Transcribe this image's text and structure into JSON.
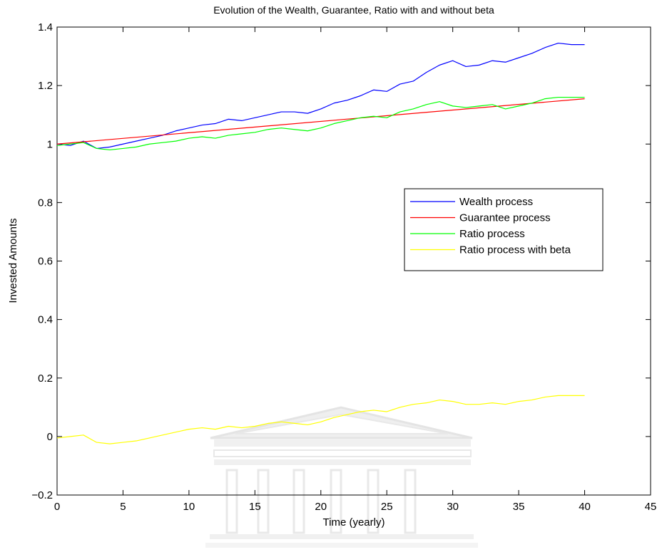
{
  "chart_data": {
    "type": "line",
    "title": "Evolution of the Wealth, Guarantee, Ratio with and without beta",
    "xlabel": "Time (yearly)",
    "ylabel": "Invested Amounts",
    "xlim": [
      0,
      45
    ],
    "ylim": [
      -0.2,
      1.4
    ],
    "xticks": [
      0,
      5,
      10,
      15,
      20,
      25,
      30,
      35,
      40,
      45
    ],
    "yticks": [
      -0.2,
      0,
      0.2,
      0.4,
      0.6,
      0.8,
      1,
      1.2,
      1.4
    ],
    "xtick_labels": [
      "0",
      "5",
      "10",
      "15",
      "20",
      "25",
      "30",
      "35",
      "40",
      "45"
    ],
    "ytick_labels": [
      "−0.2",
      "0",
      "0.2",
      "0.4",
      "0.6",
      "0.8",
      "1",
      "1.2",
      "1.4"
    ],
    "grid": false,
    "legend_position": "right",
    "watermark": "university building emblem",
    "series": [
      {
        "name": "Wealth process",
        "color": "#0000ff",
        "x": [
          0,
          1,
          2,
          3,
          4,
          5,
          6,
          7,
          8,
          9,
          10,
          11,
          12,
          13,
          14,
          15,
          16,
          17,
          18,
          19,
          20,
          21,
          22,
          23,
          24,
          25,
          26,
          27,
          28,
          29,
          30,
          31,
          32,
          33,
          34,
          35,
          36,
          37,
          38,
          39,
          40
        ],
        "values": [
          1.0,
          0.995,
          1.01,
          0.985,
          0.99,
          1.0,
          1.01,
          1.02,
          1.03,
          1.045,
          1.055,
          1.065,
          1.07,
          1.085,
          1.08,
          1.09,
          1.1,
          1.11,
          1.11,
          1.105,
          1.12,
          1.14,
          1.15,
          1.165,
          1.185,
          1.18,
          1.205,
          1.215,
          1.245,
          1.27,
          1.285,
          1.265,
          1.27,
          1.285,
          1.28,
          1.295,
          1.31,
          1.33,
          1.345,
          1.34,
          1.34
        ]
      },
      {
        "name": "Guarantee process",
        "color": "#ff0000",
        "x": [
          0,
          40
        ],
        "values": [
          1.0,
          1.155
        ]
      },
      {
        "name": "Ratio process",
        "color": "#00ff00",
        "x": [
          0,
          1,
          2,
          3,
          4,
          5,
          6,
          7,
          8,
          9,
          10,
          11,
          12,
          13,
          14,
          15,
          16,
          17,
          18,
          19,
          20,
          21,
          22,
          23,
          24,
          25,
          26,
          27,
          28,
          29,
          30,
          31,
          32,
          33,
          34,
          35,
          36,
          37,
          38,
          39,
          40
        ],
        "values": [
          0.995,
          1.0,
          1.005,
          0.985,
          0.98,
          0.985,
          0.99,
          1.0,
          1.005,
          1.01,
          1.02,
          1.025,
          1.02,
          1.03,
          1.035,
          1.04,
          1.05,
          1.055,
          1.05,
          1.045,
          1.055,
          1.07,
          1.08,
          1.09,
          1.095,
          1.09,
          1.11,
          1.12,
          1.135,
          1.145,
          1.13,
          1.125,
          1.13,
          1.135,
          1.12,
          1.13,
          1.14,
          1.155,
          1.16,
          1.16,
          1.16
        ]
      },
      {
        "name": "Ratio process with beta",
        "color": "#ffff00",
        "x": [
          0,
          1,
          2,
          3,
          4,
          5,
          6,
          7,
          8,
          9,
          10,
          11,
          12,
          13,
          14,
          15,
          16,
          17,
          18,
          19,
          20,
          21,
          22,
          23,
          24,
          25,
          26,
          27,
          28,
          29,
          30,
          31,
          32,
          33,
          34,
          35,
          36,
          37,
          38,
          39,
          40
        ],
        "values": [
          -0.005,
          0.0,
          0.005,
          -0.02,
          -0.025,
          -0.02,
          -0.015,
          -0.005,
          0.005,
          0.015,
          0.025,
          0.03,
          0.025,
          0.035,
          0.03,
          0.035,
          0.045,
          0.05,
          0.045,
          0.04,
          0.05,
          0.065,
          0.075,
          0.085,
          0.09,
          0.085,
          0.1,
          0.11,
          0.115,
          0.125,
          0.12,
          0.11,
          0.11,
          0.115,
          0.11,
          0.12,
          0.125,
          0.135,
          0.14,
          0.14,
          0.14
        ]
      }
    ]
  }
}
